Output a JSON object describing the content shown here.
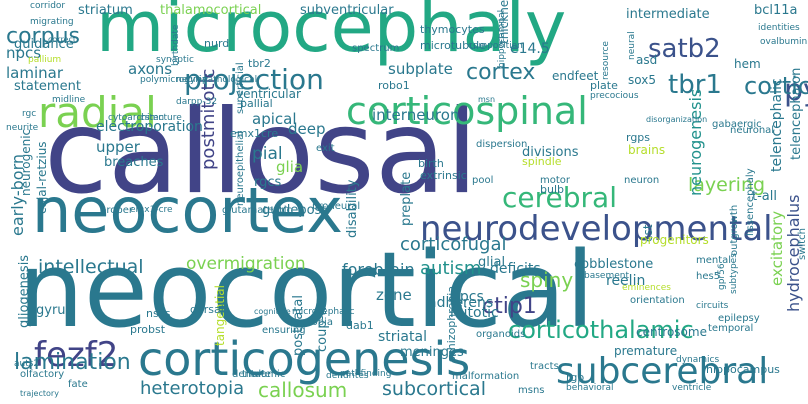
{
  "words": [
    {
      "text": "callosal",
      "c": "#414487"
    },
    {
      "text": "neocortical",
      "c": "#2a788e"
    },
    {
      "text": "microcephaly",
      "c": "#22a884"
    },
    {
      "text": "neocortex",
      "c": "#2a788e"
    },
    {
      "text": "corticogenesis",
      "c": "#2a788e"
    },
    {
      "text": "neurodevelopmental",
      "c": "#3b528b"
    },
    {
      "text": "corticospinal",
      "c": "#35b779"
    },
    {
      "text": "radial",
      "c": "#7ad151"
    },
    {
      "text": "projection",
      "c": "#2a788e"
    },
    {
      "text": "subcerebral",
      "c": "#2a788e"
    },
    {
      "text": "fezf2",
      "c": "#414487"
    },
    {
      "text": "cerebral",
      "c": "#35b779"
    },
    {
      "text": "pyramidal",
      "c": "#3b528b"
    },
    {
      "text": "cortical",
      "c": "#2a788e"
    },
    {
      "text": "satb2",
      "c": "#3b528b"
    },
    {
      "text": "tbr1",
      "c": "#2a788e"
    },
    {
      "text": "corticothalamic",
      "c": "#22a884"
    },
    {
      "text": "corpus",
      "c": "#2a788e"
    },
    {
      "text": "cortex",
      "c": "#2a788e"
    },
    {
      "text": "lamination",
      "c": "#2a788e"
    },
    {
      "text": "heterotopia",
      "c": "#2a788e"
    },
    {
      "text": "callosum",
      "c": "#7ad151"
    },
    {
      "text": "subcortical",
      "c": "#2a788e"
    },
    {
      "text": "autism",
      "c": "#21918c"
    },
    {
      "text": "intellectual",
      "c": "#2a788e"
    },
    {
      "text": "corticofugal",
      "c": "#2a788e"
    },
    {
      "text": "overmigration",
      "c": "#7ad151"
    },
    {
      "text": "forebrain",
      "c": "#2a788e"
    },
    {
      "text": "ctip1",
      "c": "#414487"
    },
    {
      "text": "spiny",
      "c": "#7ad151"
    },
    {
      "text": "layering",
      "c": "#7ad151"
    },
    {
      "text": "neurogenesis",
      "c": "#21918c"
    },
    {
      "text": "hydrocephalus",
      "c": "#3b528b"
    },
    {
      "text": "excitatory",
      "c": "#7ad151"
    },
    {
      "text": "telencephalic",
      "c": "#2a788e"
    },
    {
      "text": "telencephalon",
      "c": "#2a788e"
    },
    {
      "text": "postmitotic",
      "c": "#414487"
    },
    {
      "text": "early-born",
      "c": "#2a788e"
    },
    {
      "text": "pial",
      "c": "#2a788e"
    },
    {
      "text": "glia",
      "c": "#7ad151"
    },
    {
      "text": "deep",
      "c": "#2a788e"
    },
    {
      "text": "apical",
      "c": "#2a788e"
    },
    {
      "text": "laminar",
      "c": "#2a788e"
    },
    {
      "text": "npcs",
      "c": "#2a788e"
    },
    {
      "text": "axons",
      "c": "#2a788e"
    },
    {
      "text": "subplate",
      "c": "#2a788e"
    },
    {
      "text": "interneuron",
      "c": "#2a788e"
    },
    {
      "text": "upper",
      "c": "#2a788e"
    },
    {
      "text": "rgcs",
      "c": "#2a788e"
    },
    {
      "text": "guidepost",
      "c": "#2a788e"
    },
    {
      "text": "electroporation",
      "c": "#2a788e"
    },
    {
      "text": "breaches",
      "c": "#2a788e"
    },
    {
      "text": "reelin",
      "c": "#2a788e"
    },
    {
      "text": "glial",
      "c": "#2a788e"
    },
    {
      "text": "zone",
      "c": "#2a788e"
    },
    {
      "text": "adherens",
      "c": "#2a788e"
    },
    {
      "text": "mitotic",
      "c": "#2a788e"
    },
    {
      "text": "ipcs",
      "c": "#2a788e"
    },
    {
      "text": "striatal",
      "c": "#2a788e"
    },
    {
      "text": "deficits",
      "c": "#2a788e"
    },
    {
      "text": "cobblestone",
      "c": "#2a788e"
    },
    {
      "text": "progenitors",
      "c": "#b5de2b"
    },
    {
      "text": "centrosome",
      "c": "#2a788e"
    },
    {
      "text": "meninges",
      "c": "#2a788e"
    },
    {
      "text": "premature",
      "c": "#2a788e"
    },
    {
      "text": "hippocampus",
      "c": "#2a788e"
    },
    {
      "text": "thalamocortical",
      "c": "#7ad151"
    },
    {
      "text": "subventricular",
      "c": "#2a788e"
    },
    {
      "text": "striatum",
      "c": "#2a788e"
    },
    {
      "text": "thymocytes",
      "c": "#2a788e"
    },
    {
      "text": "intermediate",
      "c": "#2a788e"
    },
    {
      "text": "bcl11a",
      "c": "#2a788e"
    },
    {
      "text": "endfeet",
      "c": "#2a788e"
    },
    {
      "text": "ventricular",
      "c": "#2a788e"
    },
    {
      "text": "pallial",
      "c": "#2a788e"
    },
    {
      "text": "emx1cre",
      "c": "#2a788e"
    },
    {
      "text": "nurd",
      "c": "#2a788e"
    },
    {
      "text": "tbr2",
      "c": "#2a788e"
    },
    {
      "text": "guidance",
      "c": "#2a788e"
    },
    {
      "text": "statement",
      "c": "#2a788e"
    },
    {
      "text": "migrating",
      "c": "#2a788e"
    },
    {
      "text": "corridor",
      "c": "#2a788e"
    },
    {
      "text": "correct",
      "c": "#2a788e"
    },
    {
      "text": "pallium",
      "c": "#b5de2b"
    },
    {
      "text": "robo1",
      "c": "#2a788e"
    },
    {
      "text": "hem",
      "c": "#2a788e"
    },
    {
      "text": "asd",
      "c": "#2a788e"
    },
    {
      "text": "sox5",
      "c": "#2a788e"
    },
    {
      "text": "gabaergic",
      "c": "#2a788e"
    },
    {
      "text": "t-all",
      "c": "#2a788e"
    },
    {
      "text": "neuronal",
      "c": "#2a788e"
    },
    {
      "text": "lissencephaly",
      "c": "#2a788e"
    },
    {
      "text": "outgrowth",
      "c": "#2a788e"
    },
    {
      "text": "rgps",
      "c": "#2a788e"
    },
    {
      "text": "brains",
      "c": "#b5de2b"
    },
    {
      "text": "divisions",
      "c": "#2a788e"
    },
    {
      "text": "spindle",
      "c": "#b5de2b"
    },
    {
      "text": "birth",
      "c": "#2a788e"
    },
    {
      "text": "extrinsic",
      "c": "#2a788e"
    },
    {
      "text": "dispersion",
      "c": "#2a788e"
    },
    {
      "text": "pool",
      "c": "#2a788e"
    },
    {
      "text": "motor",
      "c": "#2a788e"
    },
    {
      "text": "neuron",
      "c": "#2a788e"
    },
    {
      "text": "disability",
      "c": "#2a788e"
    },
    {
      "text": "preplate",
      "c": "#2a788e"
    },
    {
      "text": "superficial",
      "c": "#2a788e"
    },
    {
      "text": "neuroepithelial",
      "c": "#2a788e"
    },
    {
      "text": "neurogenic",
      "c": "#2a788e"
    },
    {
      "text": "cajal-retzius",
      "c": "#2a788e"
    },
    {
      "text": "proneural",
      "c": "#2a788e"
    },
    {
      "text": "glutamatergic",
      "c": "#2a788e"
    },
    {
      "text": "proper",
      "c": "#2a788e"
    },
    {
      "text": "emx1-cre",
      "c": "#2a788e"
    },
    {
      "text": "gliogenesis",
      "c": "#2a788e"
    },
    {
      "text": "gyrus",
      "c": "#2a788e"
    },
    {
      "text": "tangential",
      "c": "#b5de2b"
    },
    {
      "text": "postnatal",
      "c": "#2a788e"
    },
    {
      "text": "coup-tf",
      "c": "#2a788e"
    },
    {
      "text": "dab1",
      "c": "#2a788e"
    },
    {
      "text": "ectopia",
      "c": "#2a788e"
    },
    {
      "text": "schizophrenia",
      "c": "#2a788e"
    },
    {
      "text": "organoids",
      "c": "#2a788e"
    },
    {
      "text": "orientation",
      "c": "#2a788e"
    },
    {
      "text": "eminences",
      "c": "#b5de2b"
    },
    {
      "text": "basement",
      "c": "#2a788e"
    },
    {
      "text": "mental",
      "c": "#2a788e"
    },
    {
      "text": "hes5",
      "c": "#2a788e"
    },
    {
      "text": "epilepsy",
      "c": "#2a788e"
    },
    {
      "text": "temporal",
      "c": "#2a788e"
    },
    {
      "text": "circuits",
      "c": "#2a788e"
    },
    {
      "text": "olfactory",
      "c": "#2a788e"
    },
    {
      "text": "dentate",
      "c": "#2a788e"
    },
    {
      "text": "dendrites",
      "c": "#2a788e"
    },
    {
      "text": "pathfinding",
      "c": "#2a788e"
    },
    {
      "text": "malformation",
      "c": "#2a788e"
    },
    {
      "text": "tracts",
      "c": "#2a788e"
    },
    {
      "text": "rgp",
      "c": "#2a788e"
    },
    {
      "text": "fate",
      "c": "#2a788e"
    },
    {
      "text": "trajectory",
      "c": "#2a788e"
    },
    {
      "text": "msns",
      "c": "#2a788e"
    },
    {
      "text": "nscs",
      "c": "#2a788e"
    },
    {
      "text": "probst",
      "c": "#2a788e"
    },
    {
      "text": "dorsal",
      "c": "#2a788e"
    },
    {
      "text": "ensuring",
      "c": "#2a788e"
    },
    {
      "text": "cognitive",
      "c": "#2a788e"
    },
    {
      "text": "microcephalic",
      "c": "#2a788e"
    },
    {
      "text": "thalamic",
      "c": "#2a788e"
    },
    {
      "text": "exit",
      "c": "#2a788e"
    },
    {
      "text": "msn",
      "c": "#2a788e"
    },
    {
      "text": "plate",
      "c": "#2a788e"
    },
    {
      "text": "precocious",
      "c": "#2a788e"
    },
    {
      "text": "microtubule",
      "c": "#2a788e"
    },
    {
      "text": "composition",
      "c": "#2a788e"
    },
    {
      "text": "e14.5",
      "c": "#2a788e"
    },
    {
      "text": "spectrum",
      "c": "#2a788e"
    },
    {
      "text": "hippocampal",
      "c": "#2a788e"
    },
    {
      "text": "thickness",
      "c": "#2a788e"
    },
    {
      "text": "csmn",
      "c": "#2a788e"
    },
    {
      "text": "darpp-32",
      "c": "#2a788e"
    },
    {
      "text": "polymicrogyria",
      "c": "#2a788e"
    },
    {
      "text": "synaptic",
      "c": "#2a788e"
    },
    {
      "text": "birthdate",
      "c": "#2a788e"
    },
    {
      "text": "resource",
      "c": "#2a788e"
    },
    {
      "text": "neural",
      "c": "#2a788e"
    },
    {
      "text": "identities",
      "c": "#2a788e"
    },
    {
      "text": "ovalbumin",
      "c": "#2a788e"
    },
    {
      "text": "switch",
      "c": "#2a788e"
    },
    {
      "text": "gpr56",
      "c": "#2a788e"
    },
    {
      "text": "subtypes",
      "c": "#2a788e"
    },
    {
      "text": "disorganization",
      "c": "#2a788e"
    },
    {
      "text": "neuropathological",
      "c": "#2a788e"
    },
    {
      "text": "cytoarchitecture",
      "c": "#2a788e"
    },
    {
      "text": "neurite",
      "c": "#2a788e"
    },
    {
      "text": "rgc",
      "c": "#2a788e"
    },
    {
      "text": "midline",
      "c": "#2a788e"
    },
    {
      "text": "auts2",
      "c": "#2a788e"
    },
    {
      "text": "ventricle",
      "c": "#2a788e"
    },
    {
      "text": "dynamics",
      "c": "#2a788e"
    },
    {
      "text": "behavioral",
      "c": "#2a788e"
    },
    {
      "text": "bulb",
      "c": "#2a788e"
    },
    {
      "text": "cst",
      "c": "#2a788e"
    },
    {
      "text": "utero",
      "c": "#2a788e"
    },
    {
      "text": "cortico",
      "c": "#2a788e"
    }
  ]
}
